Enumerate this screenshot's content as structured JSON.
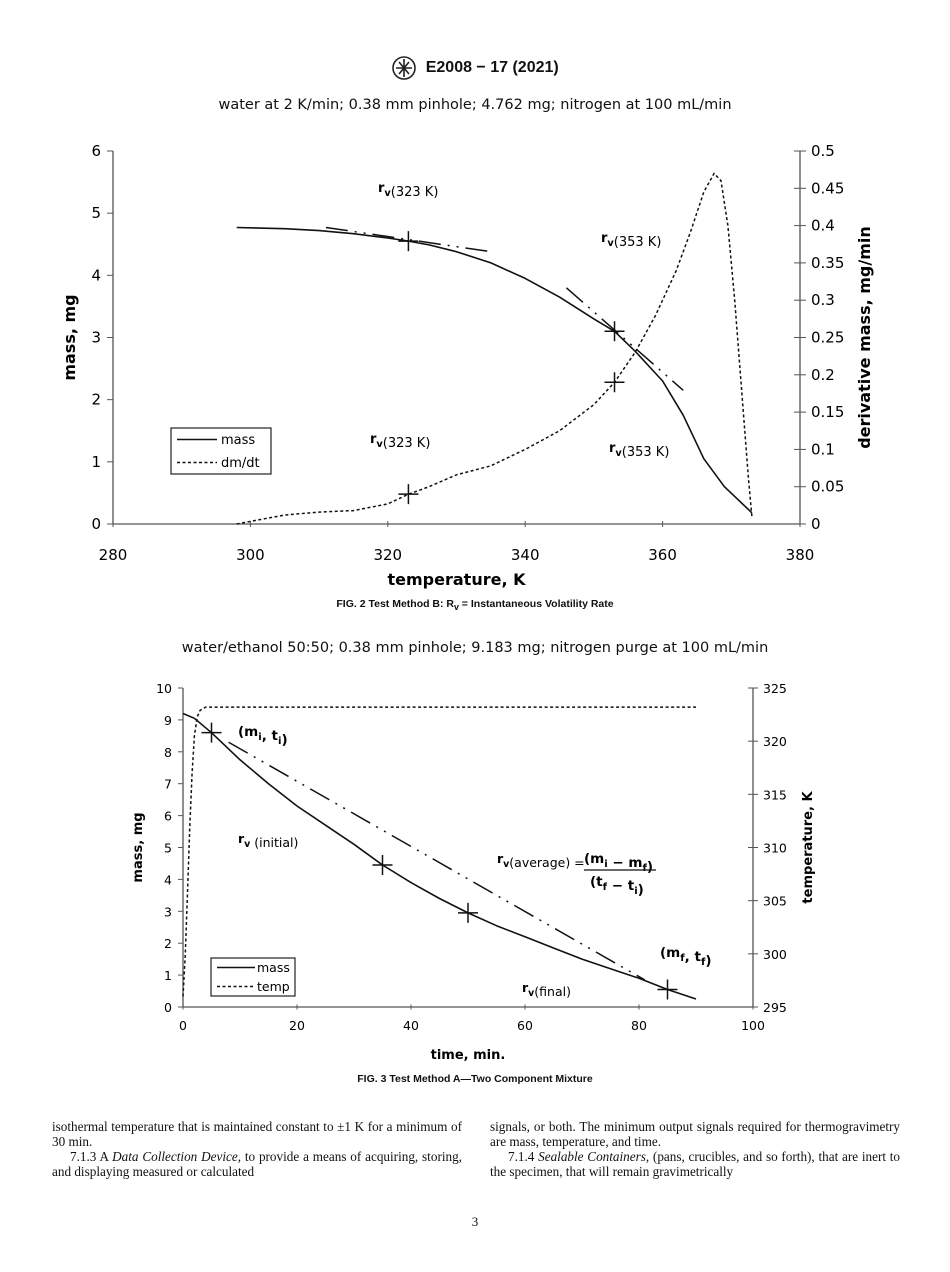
{
  "header": {
    "designation": "E2008 − 17 (2021)",
    "logo_text": "ASTM"
  },
  "fig2": {
    "subtitle": "water at 2 K/min; 0.38 mm pinhole; 4.762 mg; nitrogen at 100 mL/min",
    "caption": "FIG. 2 Test Method B: R",
    "caption_sub": "v",
    "caption_rest": " = Instantaneous Volatility Rate"
  },
  "fig3": {
    "subtitle": "water/ethanol 50:50; 0.38 mm pinhole; 9.183 mg; nitrogen purge at 100 mL/min",
    "caption": "FIG. 3 Test Method A—Two Component Mixture"
  },
  "chart_data": [
    {
      "type": "line",
      "xlabel": "temperature, K",
      "ylabel": "mass, mg",
      "y2label": "derivative mass, mg/min",
      "xlim": [
        280,
        380
      ],
      "ylim": [
        0,
        6
      ],
      "y2lim": [
        0,
        0.5
      ],
      "xticks": [
        280,
        300,
        320,
        340,
        360,
        380
      ],
      "yticks": [
        0,
        1,
        2,
        3,
        4,
        5,
        6
      ],
      "y2ticks": [
        "0",
        "0.05",
        "0.1",
        "0.15",
        "0.2",
        "0.25",
        "0.3",
        "0.35",
        "0.4",
        "0.45",
        "0.5"
      ],
      "legend": {
        "placement": "lower-left",
        "entries": [
          "mass",
          "dm/dt"
        ]
      },
      "series": [
        {
          "name": "mass",
          "axis": "left",
          "style": "solid",
          "x": [
            298,
            305,
            310,
            315,
            320,
            323,
            326,
            330,
            335,
            340,
            345,
            350,
            353,
            356,
            360,
            363,
            366,
            369,
            373
          ],
          "y": [
            4.77,
            4.75,
            4.72,
            4.67,
            4.6,
            4.55,
            4.49,
            4.38,
            4.2,
            3.95,
            3.65,
            3.3,
            3.1,
            2.78,
            2.3,
            1.75,
            1.05,
            0.6,
            0.18
          ]
        },
        {
          "name": "dm/dt",
          "axis": "right",
          "style": "dashed",
          "x": [
            298,
            302,
            305,
            310,
            315,
            320,
            323,
            326,
            330,
            335,
            340,
            345,
            350,
            353,
            356,
            359,
            362,
            364,
            366,
            367.5,
            368.5,
            369.5,
            370.5,
            371.5,
            372.5,
            373
          ],
          "y": [
            0,
            0.007,
            0.012,
            0.016,
            0.018,
            0.027,
            0.04,
            0.05,
            0.066,
            0.078,
            0.1,
            0.125,
            0.16,
            0.19,
            0.23,
            0.28,
            0.34,
            0.39,
            0.445,
            0.47,
            0.46,
            0.4,
            0.3,
            0.18,
            0.06,
            0.01
          ]
        }
      ],
      "tangents": [
        {
          "axis": "left",
          "x": [
            311,
            335
          ],
          "y": [
            4.77,
            4.38
          ]
        },
        {
          "axis": "left",
          "x": [
            346,
            363
          ],
          "y": [
            3.8,
            2.15
          ]
        }
      ],
      "markers": [
        {
          "axis": "left",
          "x": 323,
          "y": 4.55
        },
        {
          "axis": "right",
          "x": 323,
          "y": 0.04
        },
        {
          "axis": "left",
          "x": 353,
          "y": 3.1
        },
        {
          "axis": "right",
          "x": 353,
          "y": 0.19
        }
      ],
      "annotations": [
        {
          "main": "r",
          "sub": "v",
          "rest": "(323 K)"
        },
        {
          "main": "r",
          "sub": "v",
          "rest": "(353 K)"
        },
        {
          "main": "r",
          "sub": "v",
          "rest": "(323 K)"
        },
        {
          "main": "r",
          "sub": "v",
          "rest": "(353 K)"
        }
      ]
    },
    {
      "type": "line",
      "xlabel": "time, min.",
      "ylabel": "mass, mg",
      "y2label": "temperature, K",
      "xlim": [
        0,
        100
      ],
      "ylim": [
        0,
        10
      ],
      "y2lim": [
        295,
        325
      ],
      "xticks": [
        0,
        20,
        40,
        60,
        80,
        100
      ],
      "yticks": [
        0,
        1,
        2,
        3,
        4,
        5,
        6,
        7,
        8,
        9,
        10
      ],
      "y2ticks": [
        295,
        300,
        305,
        310,
        315,
        320,
        325
      ],
      "legend": {
        "placement": "lower-left",
        "entries": [
          "mass",
          "temp"
        ]
      },
      "series": [
        {
          "name": "mass",
          "axis": "left",
          "style": "solid",
          "x": [
            0,
            2,
            5,
            10,
            15,
            20,
            25,
            30,
            35,
            40,
            45,
            50,
            55,
            60,
            65,
            70,
            75,
            80,
            85,
            90
          ],
          "y": [
            9.2,
            9.05,
            8.6,
            7.75,
            7,
            6.3,
            5.7,
            5.1,
            4.45,
            3.9,
            3.4,
            2.95,
            2.55,
            2.2,
            1.85,
            1.5,
            1.2,
            0.9,
            0.55,
            0.25
          ]
        },
        {
          "name": "temp",
          "axis": "right",
          "style": "dashed",
          "x": [
            0,
            0.4,
            0.8,
            1.2,
            1.6,
            2,
            2.5,
            3,
            4,
            90
          ],
          "y": [
            296,
            300,
            306,
            312,
            317,
            320.5,
            322.3,
            322.9,
            323.2,
            323.2
          ]
        }
      ],
      "tangents": [
        {
          "axis": "left",
          "x": [
            8,
            81
          ],
          "y": [
            8.3,
            0.85
          ]
        }
      ],
      "markers": [
        {
          "axis": "left",
          "x": 5,
          "y": 8.6
        },
        {
          "axis": "left",
          "x": 35,
          "y": 4.45
        },
        {
          "axis": "left",
          "x": 50,
          "y": 2.95
        },
        {
          "axis": "left",
          "x": 85,
          "y": 0.55
        }
      ],
      "annotations": [
        {
          "text": "(m",
          "sub": "i",
          "mid": ", t",
          "sub2": "i",
          "end": ")"
        },
        {
          "main": "r",
          "sub": "v",
          "rest": " (initial)"
        },
        {
          "main": "r",
          "sub": "v",
          "rest": "(average) = "
        },
        {
          "num": "(m",
          "nsub": "i",
          "nmid": " − m",
          "nsub2": "f",
          "nend": ")",
          "den": "(t",
          "dsub": "f",
          "dmid": " − t",
          "dsub2": "i",
          "dend": ")"
        },
        {
          "text": "(m",
          "sub": "f",
          "mid": ", t",
          "sub2": "f",
          "end": ")"
        },
        {
          "main": "r",
          "sub": "v",
          "rest": "(final)"
        }
      ]
    }
  ],
  "body": {
    "left": [
      "isothermal temperature that is maintained constant to ±1 K for a minimum of 30 min.",
      "7.1.3 A ",
      "Data Collection Device",
      ", to provide a means of acquiring, storing, and displaying measured or calculated"
    ],
    "right": [
      "signals, or both. The minimum output signals required for thermogravimetry are mass, temperature, and time.",
      "7.1.4 ",
      "Sealable Containers",
      ", (pans, crucibles, and so forth), that are inert to the specimen, that will remain gravimetrically"
    ]
  },
  "page_number": "3"
}
